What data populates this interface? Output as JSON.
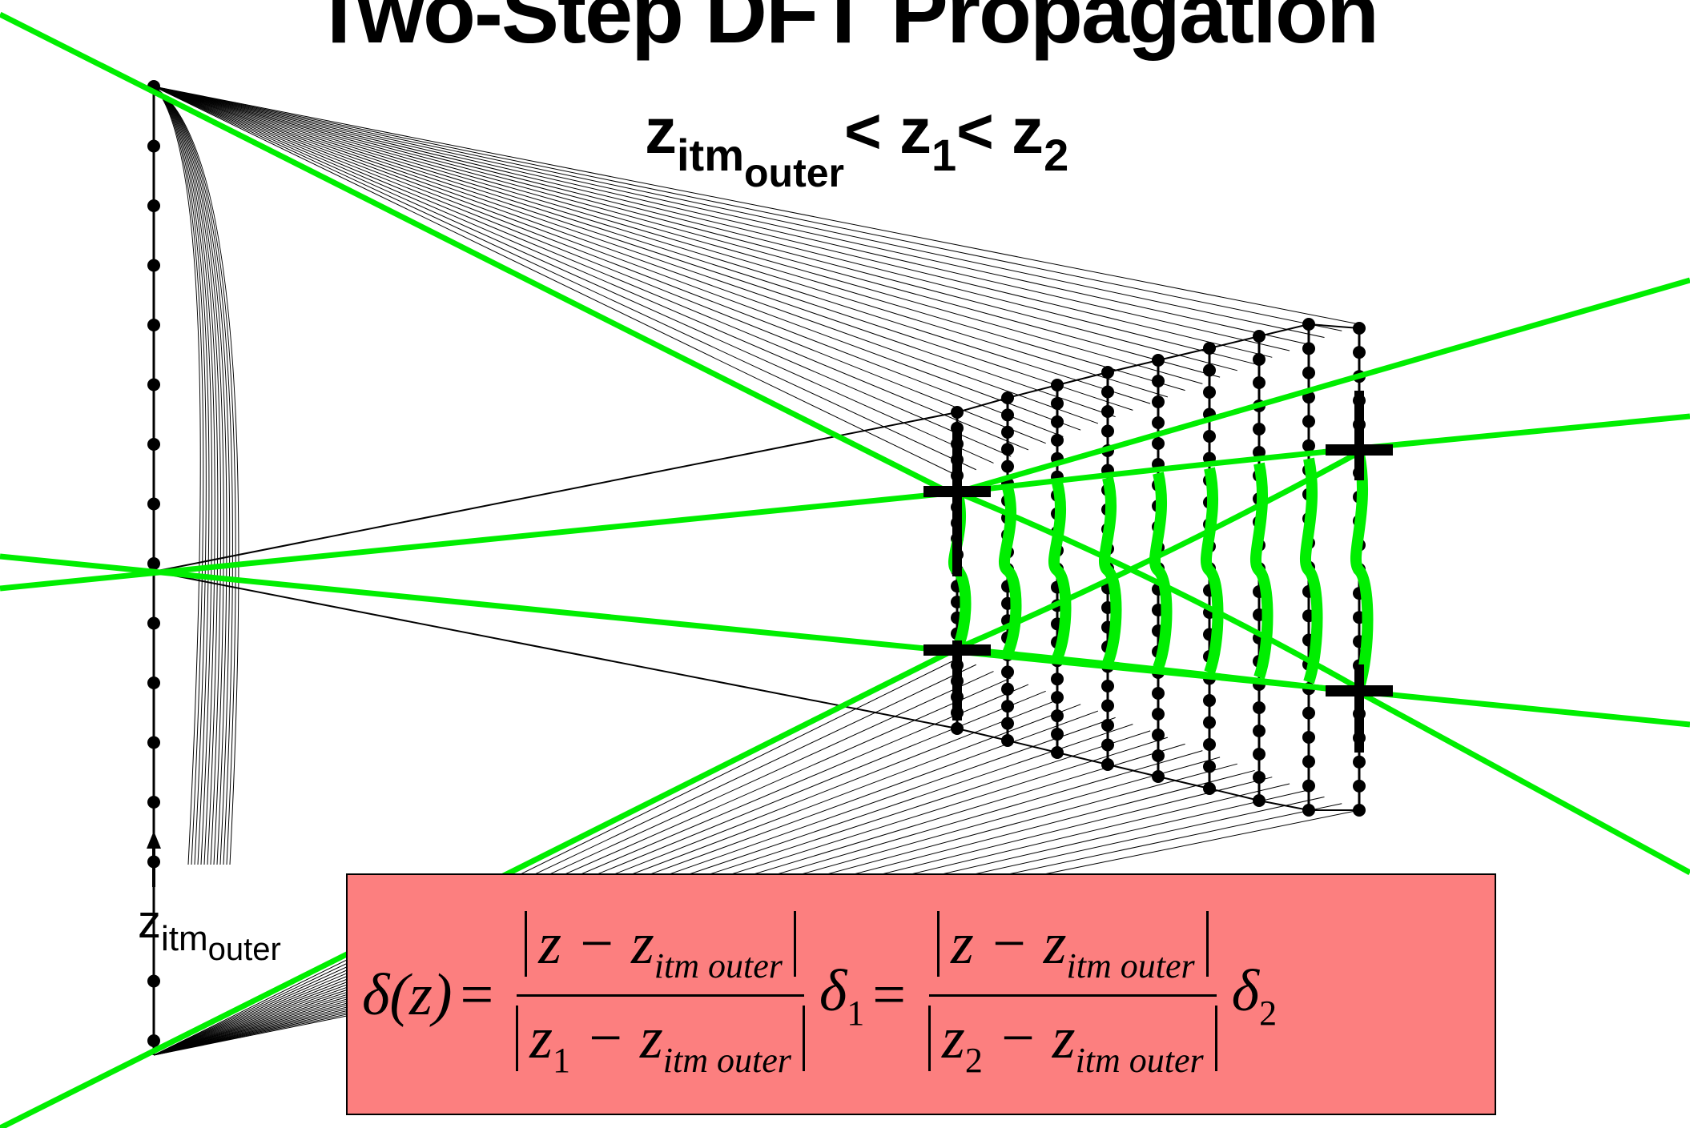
{
  "title": "Two-Step DFT Propagation",
  "subtitle": {
    "z": "z",
    "sub_main": "itm",
    "sub_sub": "outer",
    "lt1": "< z",
    "sub1": "1",
    "lt2": "< z",
    "sub2": "2"
  },
  "marker_label": {
    "z": "z",
    "sub_main": "itm",
    "sub_sub": "outer"
  },
  "formula": {
    "lhs": "δ(z)",
    "eq": "=",
    "num": "z − z",
    "num_sub": "itm outer",
    "den1_z": "z",
    "den1_idx": "1",
    "den2_z": "z",
    "den2_idx": "2",
    "minus_z": " − z",
    "den_sub": "itm outer",
    "delta1": "δ",
    "delta1_idx": "1",
    "delta2": "δ",
    "delta2_idx": "2"
  },
  "colors": {
    "beam": "#00ee00",
    "box_fill": "#fc7f7f",
    "ink": "#000000"
  }
}
